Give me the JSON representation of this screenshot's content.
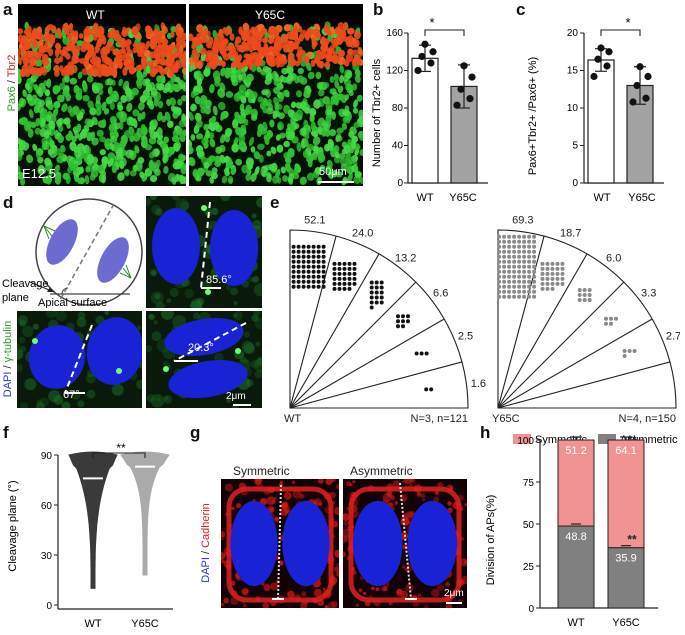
{
  "panels": {
    "a": {
      "label": "a",
      "wt": "WT",
      "mut": "Y65C",
      "stage": "E12.5",
      "scale": "50μm",
      "stain_green": "Pax6",
      "stain_sep": " / ",
      "stain_red": "Tbr2"
    },
    "b": {
      "label": "b",
      "sig": "*",
      "ylabel": "Number of Tbr2+ cells",
      "categories": [
        "WT",
        "Y65C"
      ],
      "ticks": [
        "0",
        "40",
        "80",
        "120",
        "160"
      ]
    },
    "c": {
      "label": "c",
      "sig": "*",
      "ylabel": "Pax6+Tbr2+ /Pax6+ (%)",
      "categories": [
        "WT",
        "Y65C"
      ],
      "ticks": [
        "0",
        "5",
        "10",
        "15",
        "20"
      ]
    },
    "d": {
      "label": "d",
      "cleavage": "Cleavage",
      "plane": "plane",
      "apical": "Apical surface",
      "angle1": "85.6°",
      "angle2": "67°",
      "angle3": "20.3°",
      "stain_blue": "DAPI",
      "stain_sep": " / ",
      "stain_green": "γ-tubulin",
      "scale": "2μm"
    },
    "e": {
      "label": "e",
      "wt_label": "WT",
      "wt_n": "N=3, n=121",
      "wt_values": [
        "52.1",
        "24.0",
        "13.2",
        "6.6",
        "2.5",
        "1.6"
      ],
      "mut_label": "Y65C",
      "mut_n": "N=4, n=150",
      "mut_values": [
        "69.3",
        "18.7",
        "6.0",
        "3.3",
        "2.7",
        "0"
      ]
    },
    "f": {
      "label": "f",
      "sig": "**",
      "ylabel": "Cleavage plane (°)",
      "categories": [
        "WT",
        "Y65C"
      ],
      "ticks": [
        "0",
        "30",
        "60",
        "90"
      ]
    },
    "g": {
      "label": "g",
      "sym": "Symmetric",
      "asym": "Asymmetric",
      "stain_blue": "DAPI",
      "stain_sep": " / ",
      "stain_red": "Cadherin",
      "scale": "2μm"
    },
    "h": {
      "label": "h",
      "legend_sym": "Symmetric",
      "legend_asym": "Asymmetric",
      "ylabel": "Division of APs(%)",
      "ticks": [
        "0",
        "25",
        "50",
        "75",
        "100"
      ],
      "wt_sym": "51.2",
      "wt_asym": "48.8",
      "mut_sym": "64.1",
      "mut_asym": "35.9",
      "sig_top": "**",
      "sig_bottom": "**",
      "categories": [
        "WT",
        "Y65C"
      ]
    }
  },
  "chart_data": [
    {
      "type": "bar",
      "panel": "b",
      "categories": [
        "WT",
        "Y65C"
      ],
      "values": [
        133,
        103
      ],
      "errors": [
        14,
        23
      ],
      "points": [
        [
          120,
          128,
          135,
          140,
          148
        ],
        [
          83,
          90,
          100,
          113,
          125
        ]
      ],
      "ylim": [
        0,
        160
      ],
      "ylabel": "Number of Tbr2+ cells",
      "colors": [
        "#ffffff",
        "#a3a3a3"
      ]
    },
    {
      "type": "bar",
      "panel": "c",
      "categories": [
        "WT",
        "Y65C"
      ],
      "values": [
        16.4,
        13.0
      ],
      "errors": [
        1.5,
        2.5
      ],
      "points": [
        [
          14.2,
          15.6,
          16.5,
          17.5,
          18.0
        ],
        [
          10.8,
          11.3,
          13.0,
          14.2,
          15.5
        ]
      ],
      "ylim": [
        0,
        20
      ],
      "ylabel": "Pax6+Tbr2+ /Pax6+ (%)",
      "colors": [
        "#ffffff",
        "#a3a3a3"
      ]
    },
    {
      "type": "violin",
      "panel": "f",
      "categories": [
        "WT",
        "Y65C"
      ],
      "medians": [
        76,
        83
      ],
      "ranges": [
        [
          10,
          90
        ],
        [
          18,
          90
        ]
      ],
      "ylim": [
        0,
        90
      ],
      "ylabel": "Cleavage plane (°)",
      "colors": [
        "#3a3a3a",
        "#aaaaaa"
      ]
    },
    {
      "type": "bar",
      "panel": "h",
      "stacked": true,
      "categories": [
        "WT",
        "Y65C"
      ],
      "series": [
        {
          "name": "Asymmetric",
          "values": [
            48.8,
            35.9
          ],
          "color": "#808080"
        },
        {
          "name": "Symmetric",
          "values": [
            51.2,
            64.1
          ],
          "color": "#f29393"
        }
      ],
      "ylim": [
        0,
        100
      ],
      "ylabel": "Division of APs(%)"
    },
    {
      "type": "polar-dot",
      "panel": "e",
      "series": [
        {
          "name": "WT",
          "values": [
            52.1,
            24.0,
            13.2,
            6.6,
            2.5,
            1.6
          ],
          "dots": [
            63,
            29,
            16,
            8,
            3,
            2
          ],
          "color": "#111111"
        },
        {
          "name": "Y65C",
          "values": [
            69.3,
            18.7,
            6.0,
            3.3,
            2.7,
            0
          ],
          "dots": [
            104,
            28,
            9,
            5,
            4,
            0
          ],
          "color": "#8a8a8a"
        }
      ]
    }
  ]
}
